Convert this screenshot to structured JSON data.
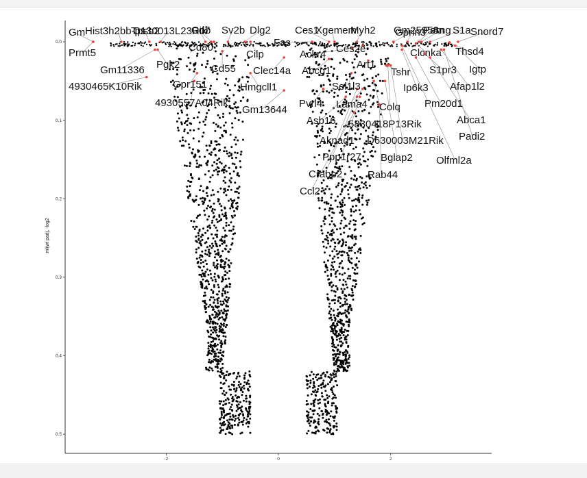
{
  "chart_data": {
    "type": "scatter",
    "title": "",
    "xlabel": "",
    "ylabel": "ml(wt padj, -log2",
    "xlim": [
      -3.8,
      3.8
    ],
    "ylim": [
      -0.02,
      0.52
    ],
    "y_reversed": true,
    "grid": false,
    "legend": "none",
    "x_ticks": [
      -2,
      0,
      2
    ],
    "x_tick_labels": [
      "-2",
      "0",
      "2"
    ],
    "y_ticks": [
      0.0,
      0.1,
      0.2,
      0.3,
      0.4,
      0.5
    ],
    "y_tick_labels": [
      "0.0",
      "0.1",
      "0.2",
      "0.3",
      "0.4",
      "0.5"
    ],
    "point_color": "#000000",
    "highlight_color": "#e8453c",
    "connector_color": "#999999",
    "labeled_genes": [
      {
        "label": "Gm",
        "x": -3.3,
        "y": 0.0
      },
      {
        "label": "Hist3h2bb-ps",
        "x": -2.8,
        "y": 0.0
      },
      {
        "label": "Tpsb2",
        "x": -2.3,
        "y": 0.0
      },
      {
        "label": "C130013L23Rik",
        "x": -2.1,
        "y": 0.0
      },
      {
        "label": "Gnb",
        "x": -1.3,
        "y": 0.0
      },
      {
        "label": "Cd7",
        "x": -1.2,
        "y": 0.0
      },
      {
        "label": "Sv2b",
        "x": -0.9,
        "y": 0.0
      },
      {
        "label": "Dlg2",
        "x": -0.6,
        "y": 0.0
      },
      {
        "label": "Fas",
        "x": 0.6,
        "y": 0.0
      },
      {
        "label": "Ces1",
        "x": 0.9,
        "y": 0.0
      },
      {
        "label": "Xgemem",
        "x": 1.0,
        "y": 0.0
      },
      {
        "label": "Myh2",
        "x": 1.4,
        "y": 0.0
      },
      {
        "label": "Gprin3",
        "x": 2.05,
        "y": 0.0
      },
      {
        "label": "Gm25958",
        "x": 2.3,
        "y": 0.0
      },
      {
        "label": "Pam",
        "x": 2.5,
        "y": 0.0
      },
      {
        "label": "Ang",
        "x": 2.55,
        "y": 0.0
      },
      {
        "label": "S1a",
        "x": 2.7,
        "y": 0.0
      },
      {
        "label": "Snord7",
        "x": 3.2,
        "y": 0.0
      },
      {
        "label": "Prmt5",
        "x": -3.3,
        "y": 0.0
      },
      {
        "label": "Cd80",
        "x": -1.15,
        "y": 0.0
      },
      {
        "label": "Cilp",
        "x": -0.5,
        "y": 0.0
      },
      {
        "label": "Ces2e",
        "x": 1.5,
        "y": 0.005
      },
      {
        "label": "Ackr4",
        "x": 1.3,
        "y": 0.008
      },
      {
        "label": "Clcnka",
        "x": 2.45,
        "y": 0.002
      },
      {
        "label": "Thsd4",
        "x": 3.05,
        "y": 0.001
      },
      {
        "label": "Gm11336",
        "x": -2.2,
        "y": 0.01
      },
      {
        "label": "Pgk2",
        "x": -2.15,
        "y": 0.01
      },
      {
        "label": "Cd55",
        "x": -1.0,
        "y": 0.012
      },
      {
        "label": "Art1",
        "x": 1.6,
        "y": 0.024
      },
      {
        "label": "Clec14a",
        "x": 0.1,
        "y": 0.02
      },
      {
        "label": "Abcg1",
        "x": 0.9,
        "y": 0.022
      },
      {
        "label": "Tshr",
        "x": 1.92,
        "y": 0.03
      },
      {
        "label": "S1pr3",
        "x": 2.6,
        "y": 0.015
      },
      {
        "label": "Igtp",
        "x": 3.15,
        "y": 0.005
      },
      {
        "label": "4930465K10Rik",
        "x": -2.35,
        "y": 0.045
      },
      {
        "label": "Gpr151",
        "x": -1.45,
        "y": 0.04
      },
      {
        "label": "Hmgcll1",
        "x": -0.5,
        "y": 0.04
      },
      {
        "label": "Sel1l3",
        "x": 1.3,
        "y": 0.04
      },
      {
        "label": "Ip6k3",
        "x": 2.2,
        "y": 0.01
      },
      {
        "label": "Afap1l2",
        "x": 2.9,
        "y": 0.01
      },
      {
        "label": "4930557A04Rik",
        "x": -1.5,
        "y": 0.05
      },
      {
        "label": "Pvrl4",
        "x": 0.8,
        "y": 0.06
      },
      {
        "label": "Lama4",
        "x": 1.5,
        "y": 0.06
      },
      {
        "label": "Colq",
        "x": 1.95,
        "y": 0.03
      },
      {
        "label": "Pm20d1",
        "x": 2.45,
        "y": 0.02
      },
      {
        "label": "Gm13644",
        "x": 0.1,
        "y": 0.062
      },
      {
        "label": "Asb16",
        "x": 1.2,
        "y": 0.07
      },
      {
        "label": "5830418P13Rik",
        "x": 1.7,
        "y": 0.05
      },
      {
        "label": "Abca1",
        "x": 2.7,
        "y": 0.02
      },
      {
        "label": "Aknad1",
        "x": 1.4,
        "y": 0.06
      },
      {
        "label": "D630003M21Rik",
        "x": 2.0,
        "y": 0.03
      },
      {
        "label": "Padi2",
        "x": 2.95,
        "y": 0.01
      },
      {
        "label": "Ppp1r27",
        "x": 1.45,
        "y": 0.07
      },
      {
        "label": "Bglap2",
        "x": 1.9,
        "y": 0.05
      },
      {
        "label": "Olfml2a",
        "x": 2.2,
        "y": 0.005
      },
      {
        "label": "Crabp2",
        "x": 1.4,
        "y": 0.07
      },
      {
        "label": "Rab44",
        "x": 1.8,
        "y": 0.08
      },
      {
        "label": "Ccl2",
        "x": 1.35,
        "y": 0.09
      }
    ]
  }
}
